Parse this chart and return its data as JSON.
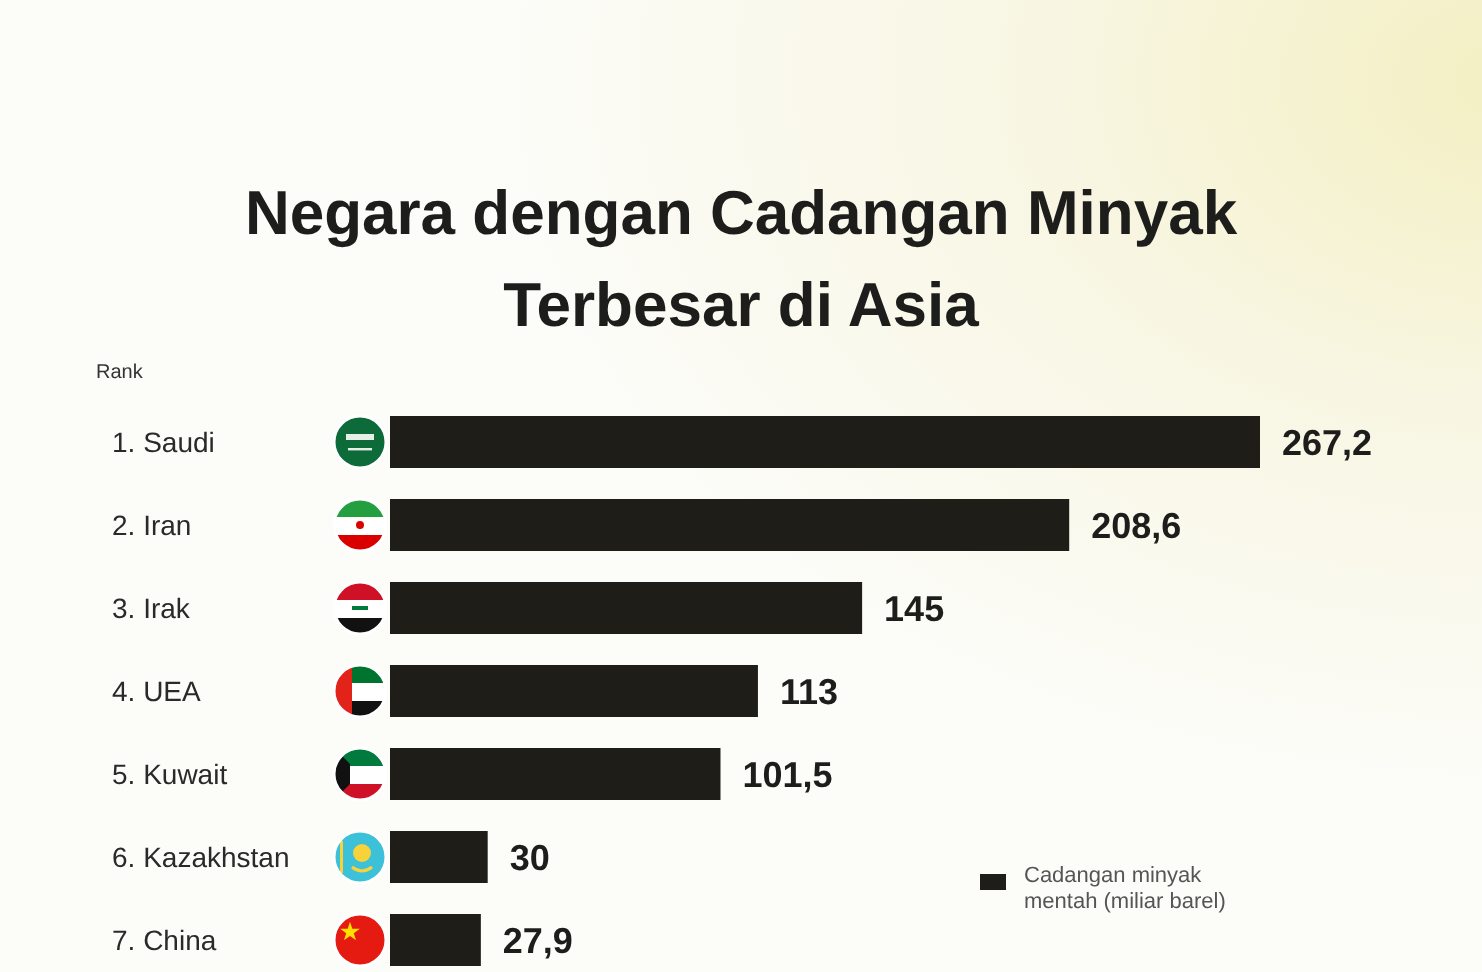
{
  "chart_data": {
    "type": "bar",
    "orientation": "horizontal",
    "title": "Negara dengan Cadangan Minyak Terbesar di Asia",
    "ylabel": "Rank",
    "categories": [
      "1. Saudi",
      "2. Iran",
      "3. Irak",
      "4. UEA",
      "5. Kuwait",
      "6. Kazakhstan",
      "7. China"
    ],
    "series": [
      {
        "name": "Cadangan minyak mentah (miliar barel)",
        "color": "#1f1d18",
        "values": [
          267.2,
          208.6,
          145,
          113,
          101.5,
          30,
          27.9
        ],
        "value_labels": [
          "267,2",
          "208,6",
          "145",
          "113",
          "101,5",
          "30",
          "27,9"
        ]
      }
    ],
    "legend": "bottom right",
    "tick_labels": "y"
  }
}
